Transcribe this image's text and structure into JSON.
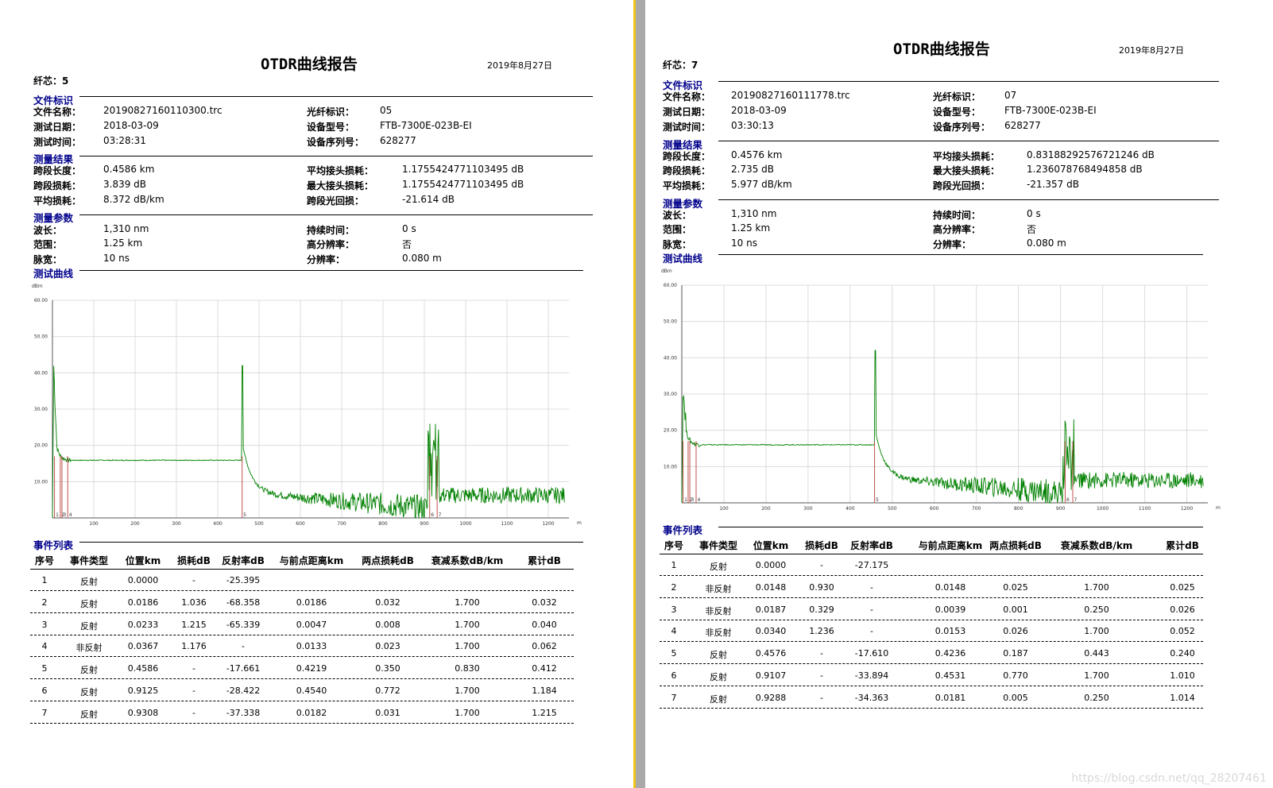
{
  "pages": [
    {
      "title": "OTDR曲线报告",
      "date": "2019年8月27日",
      "fiber_label": "纤芯：",
      "fiber_no": "5",
      "sections": {
        "file": "文件标识",
        "result": "测量结果",
        "param": "测量参数",
        "curve": "测试曲线",
        "events": "事件列表"
      },
      "file": [
        {
          "label": "文件名称：",
          "value": "20190827160110300.trc"
        },
        {
          "label": "测试日期：",
          "value": "2018-03-09"
        },
        {
          "label": "测试时间：",
          "value": "03:28:31"
        },
        {
          "label": "光纤标识：",
          "value": "05"
        },
        {
          "label": "设备型号：",
          "value": "FTB-7300E-023B-EI"
        },
        {
          "label": "设备序列号：",
          "value": "628277"
        }
      ],
      "result": [
        {
          "label": "跨段长度：",
          "value": "0.4586 km"
        },
        {
          "label": "跨段损耗：",
          "value": "3.839 dB"
        },
        {
          "label": "平均损耗：",
          "value": "8.372 dB/km"
        },
        {
          "label": "平均接头损耗：",
          "value": "1.1755424771103495 dB"
        },
        {
          "label": "最大接头损耗：",
          "value": "1.1755424771103495 dB"
        },
        {
          "label": "跨段光回损：",
          "value": "-21.614 dB"
        }
      ],
      "param": [
        {
          "label": "波长：",
          "value": "1,310 nm"
        },
        {
          "label": "范围：",
          "value": "1.25 km"
        },
        {
          "label": "脉宽：",
          "value": "10 ns"
        },
        {
          "label": "持续时间：",
          "value": "0 s"
        },
        {
          "label": "高分辨率：",
          "value": "否"
        },
        {
          "label": "分辨率：",
          "value": "0.080 m"
        }
      ],
      "events": {
        "headers": [
          "序号",
          "事件类型",
          "位置km",
          "损耗dB",
          "反射率dB",
          "与前点距离km",
          "两点损耗dB",
          "衰减系数dB/km",
          "累计dB"
        ],
        "rows": [
          [
            "1",
            "反射",
            "0.0000",
            "-",
            "-25.395",
            "",
            "",
            "",
            ""
          ],
          [
            "2",
            "反射",
            "0.0186",
            "1.036",
            "-68.358",
            "0.0186",
            "0.032",
            "1.700",
            "0.032"
          ],
          [
            "3",
            "反射",
            "0.0233",
            "1.215",
            "-65.339",
            "0.0047",
            "0.008",
            "1.700",
            "0.040"
          ],
          [
            "4",
            "非反射",
            "0.0367",
            "1.176",
            "-",
            "0.0133",
            "0.023",
            "1.700",
            "0.062"
          ],
          [
            "5",
            "反射",
            "0.4586",
            "-",
            "-17.661",
            "0.4219",
            "0.350",
            "0.830",
            "0.412"
          ],
          [
            "6",
            "反射",
            "0.9125",
            "-",
            "-28.422",
            "0.4540",
            "0.772",
            "1.700",
            "1.184"
          ],
          [
            "7",
            "反射",
            "0.9308",
            "-",
            "-37.338",
            "0.0182",
            "0.031",
            "1.700",
            "1.215"
          ]
        ]
      },
      "chart_data": {
        "type": "line",
        "ylabel": "dBm",
        "xlabel": "m",
        "ylim": [
          0,
          60
        ],
        "xlim": [
          0,
          1250
        ],
        "yticks": [
          "10.00",
          "20.00",
          "30.00",
          "40.00",
          "50.00",
          "60.00"
        ],
        "xticks": [
          "100",
          "200",
          "300",
          "400",
          "500",
          "600",
          "700",
          "800",
          "900",
          "1000",
          "1100",
          "1200"
        ],
        "grid": true,
        "trace_color": "#008000",
        "marker_color": "#c0504d",
        "noise_floor": 15.9,
        "events": [
          {
            "n": "1",
            "x": 5,
            "peak": 42
          },
          {
            "n": "2",
            "x": 19,
            "peak": 20
          },
          {
            "n": "3",
            "x": 23,
            "peak": 21
          },
          {
            "n": "4",
            "x": 37,
            "peak": 17
          },
          {
            "n": "5",
            "x": 459,
            "peak": 42
          },
          {
            "n": "6",
            "x": 913,
            "peak": 26
          },
          {
            "n": "7",
            "x": 931,
            "peak": 24
          }
        ]
      }
    },
    {
      "title": "OTDR曲线报告",
      "date": "2019年8月27日",
      "fiber_label": "纤芯：",
      "fiber_no": "7",
      "sections": {
        "file": "文件标识",
        "result": "测量结果",
        "param": "测量参数",
        "curve": "测试曲线",
        "events": "事件列表"
      },
      "file": [
        {
          "label": "文件名称：",
          "value": "20190827160111778.trc"
        },
        {
          "label": "测试日期：",
          "value": "2018-03-09"
        },
        {
          "label": "测试时间：",
          "value": "03:30:13"
        },
        {
          "label": "光纤标识：",
          "value": "07"
        },
        {
          "label": "设备型号：",
          "value": "FTB-7300E-023B-EI"
        },
        {
          "label": "设备序列号：",
          "value": "628277"
        }
      ],
      "result": [
        {
          "label": "跨段长度：",
          "value": "0.4576 km"
        },
        {
          "label": "跨段损耗：",
          "value": "2.735 dB"
        },
        {
          "label": "平均损耗：",
          "value": "5.977 dB/km"
        },
        {
          "label": "平均接头损耗：",
          "value": "0.83188292576721246 dB"
        },
        {
          "label": "最大接头损耗：",
          "value": "1.236078768494858 dB"
        },
        {
          "label": "跨段光回损：",
          "value": "-21.357 dB"
        }
      ],
      "param": [
        {
          "label": "波长：",
          "value": "1,310 nm"
        },
        {
          "label": "范围：",
          "value": "1.25 km"
        },
        {
          "label": "脉宽：",
          "value": "10 ns"
        },
        {
          "label": "持续时间：",
          "value": "0 s"
        },
        {
          "label": "高分辨率：",
          "value": "否"
        },
        {
          "label": "分辨率：",
          "value": "0.080 m"
        }
      ],
      "events": {
        "headers": [
          "序号",
          "事件类型",
          "位置km",
          "损耗dB",
          "反射率dB",
          "与前点距离km",
          "两点损耗dB",
          "衰减系数dB/km",
          "累计dB"
        ],
        "rows": [
          [
            "1",
            "反射",
            "0.0000",
            "-",
            "-27.175",
            "",
            "",
            "",
            ""
          ],
          [
            "2",
            "非反射",
            "0.0148",
            "0.930",
            "-",
            "0.0148",
            "0.025",
            "1.700",
            "0.025"
          ],
          [
            "3",
            "非反射",
            "0.0187",
            "0.329",
            "-",
            "0.0039",
            "0.001",
            "0.250",
            "0.026"
          ],
          [
            "4",
            "非反射",
            "0.0340",
            "1.236",
            "-",
            "0.0153",
            "0.026",
            "1.700",
            "0.052"
          ],
          [
            "5",
            "反射",
            "0.4576",
            "-",
            "-17.610",
            "0.4236",
            "0.187",
            "0.443",
            "0.240"
          ],
          [
            "6",
            "反射",
            "0.9107",
            "-",
            "-33.894",
            "0.4531",
            "0.770",
            "1.700",
            "1.010"
          ],
          [
            "7",
            "反射",
            "0.9288",
            "-",
            "-34.363",
            "0.0181",
            "0.005",
            "0.250",
            "1.014"
          ]
        ]
      },
      "chart_data": {
        "type": "line",
        "ylabel": "dBm",
        "xlabel": "m",
        "ylim": [
          0,
          60
        ],
        "xlim": [
          0,
          1250
        ],
        "yticks": [
          "10.00",
          "20.00",
          "30.00",
          "40.00",
          "50.00",
          "60.00"
        ],
        "xticks": [
          "100",
          "200",
          "300",
          "400",
          "500",
          "600",
          "700",
          "800",
          "900",
          "1000",
          "1100",
          "1200"
        ],
        "grid": true,
        "trace_color": "#008000",
        "marker_color": "#c0504d",
        "noise_floor": 16,
        "events": [
          {
            "n": "1",
            "x": 3,
            "peak": 32
          },
          {
            "n": "2",
            "x": 15,
            "peak": 17
          },
          {
            "n": "3",
            "x": 19,
            "peak": 17
          },
          {
            "n": "4",
            "x": 34,
            "peak": 17
          },
          {
            "n": "5",
            "x": 458,
            "peak": 42
          },
          {
            "n": "6",
            "x": 911,
            "peak": 23
          },
          {
            "n": "7",
            "x": 929,
            "peak": 23
          }
        ]
      }
    }
  ],
  "watermark": "https://blog.csdn.net/qq_28207461"
}
